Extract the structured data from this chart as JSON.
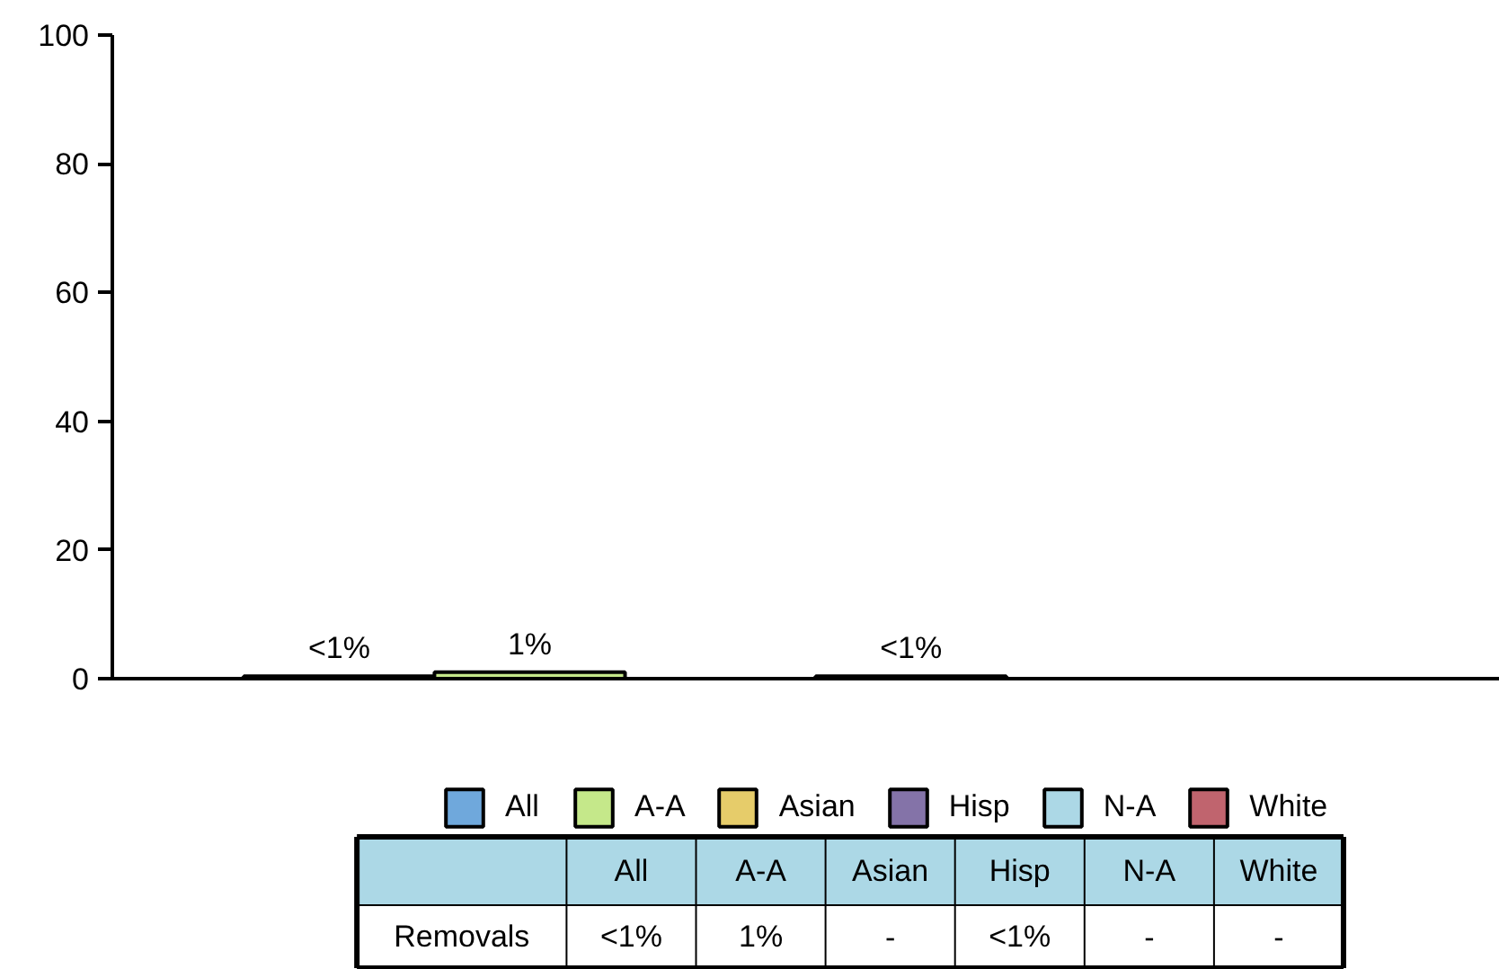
{
  "chart_data": {
    "type": "bar",
    "categories": [
      null
    ],
    "annotations": [
      "Removals"
    ],
    "series": [
      {
        "name": "All",
        "color": "#6fa8dc",
        "values": [
          0.4
        ],
        "value_labels": [
          "<1%"
        ]
      },
      {
        "name": "A-A",
        "color": "#c5e88a",
        "values": [
          1
        ],
        "value_labels": [
          "1%"
        ]
      },
      {
        "name": "Asian",
        "color": "#e6cc6a",
        "values": [
          null
        ],
        "value_labels": [
          "-"
        ]
      },
      {
        "name": "Hisp",
        "color": "#8473a8",
        "values": [
          0.4
        ],
        "value_labels": [
          "<1%"
        ]
      },
      {
        "name": "N-A",
        "color": "#acd8e6",
        "values": [
          null
        ],
        "value_labels": [
          "-"
        ]
      },
      {
        "name": "White",
        "color": "#c0646e",
        "values": [
          null
        ],
        "value_labels": [
          "-"
        ]
      }
    ],
    "ylim": [
      0,
      100
    ],
    "yticks": [
      0,
      20,
      40,
      60,
      80,
      100
    ],
    "grid": false,
    "legend": "bottom",
    "tick_labels": "y"
  }
}
